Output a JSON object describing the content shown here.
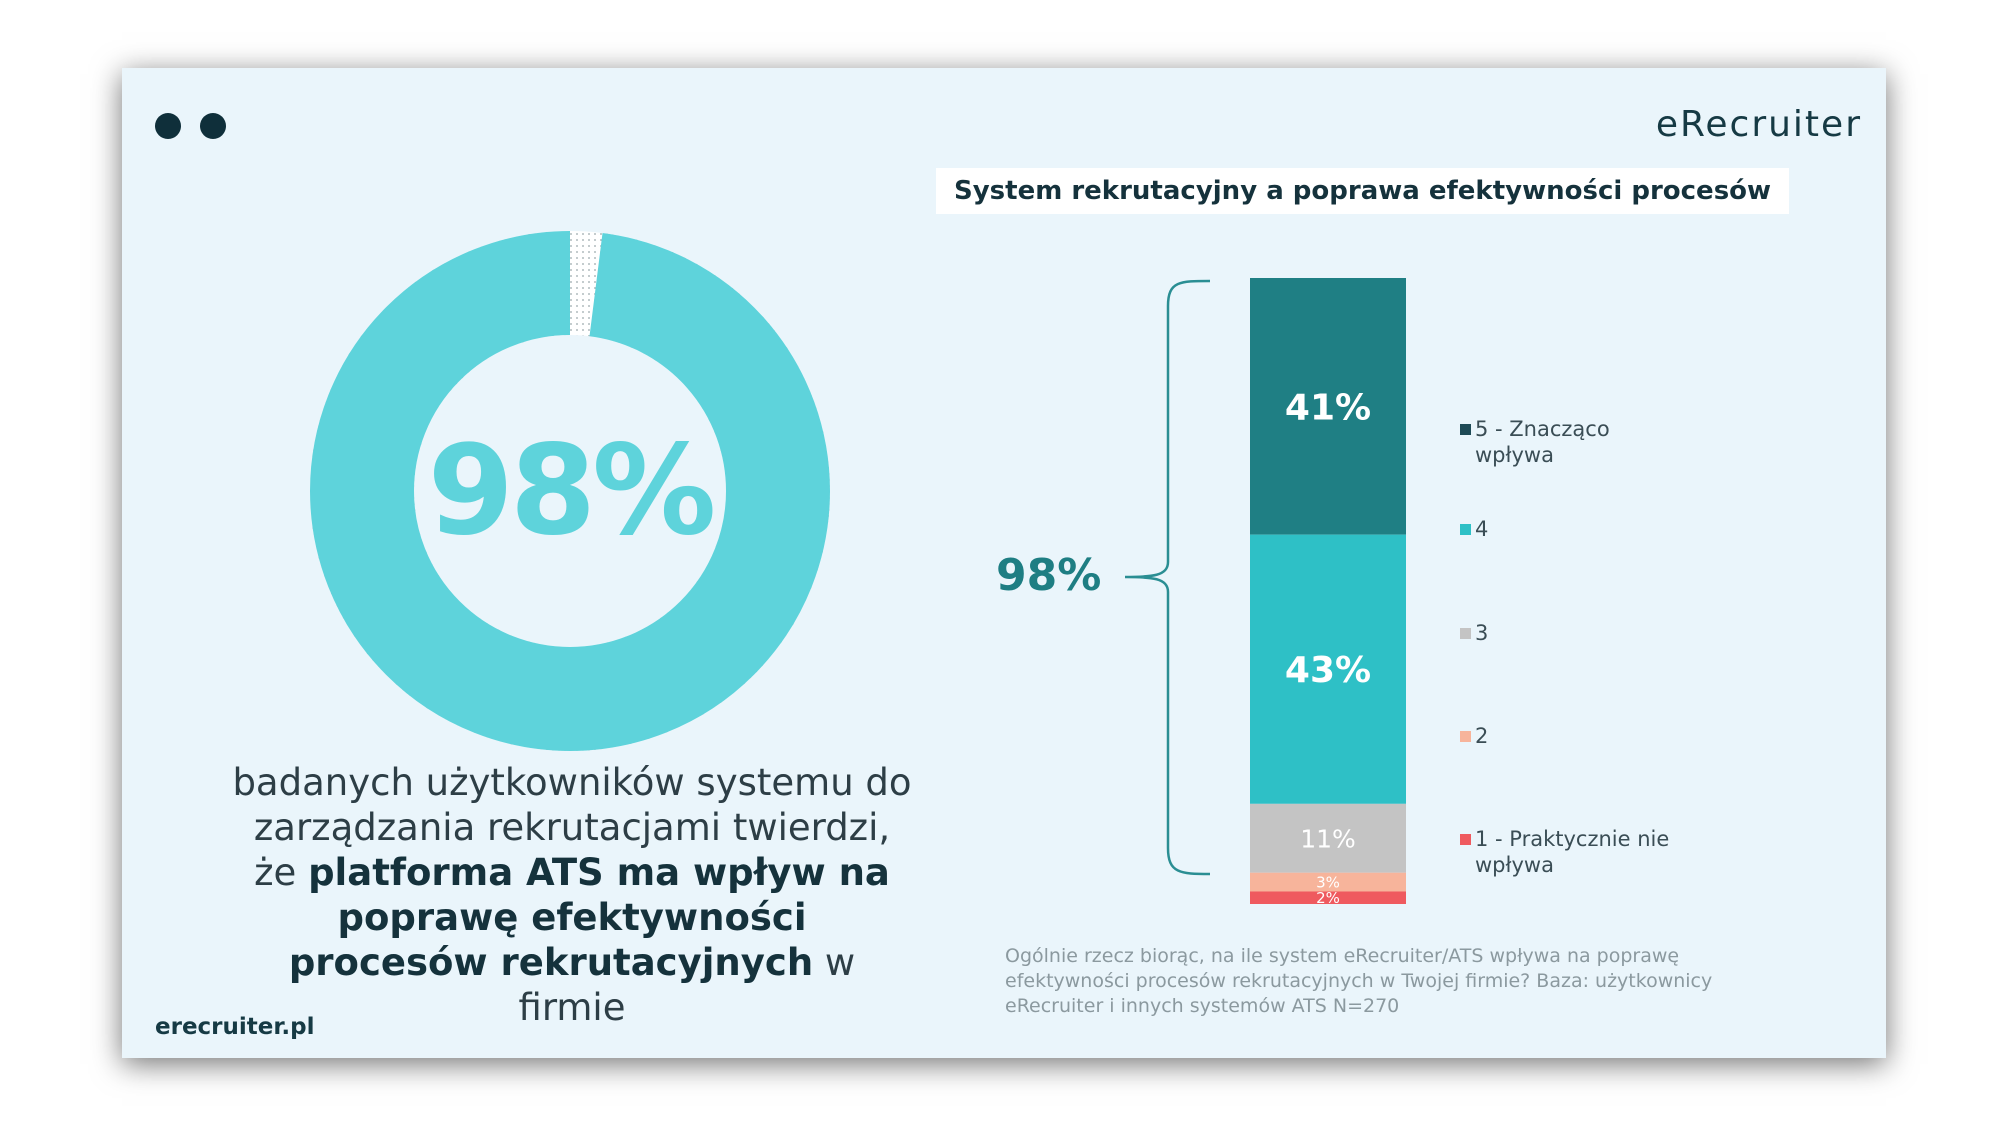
{
  "brand": {
    "logo": "eRecruiter",
    "site": "erecruiter.pl"
  },
  "donut": {
    "value": 98,
    "label": "98%",
    "color": "#5ed3db"
  },
  "description": {
    "part1": "badanych użytkowników systemu do zarządzania rekrutacjami twierdzi, że",
    "bold": "platforma ATS ma wpływ na poprawę efektywności procesów rekrutacyjnych",
    "part2": "w firmie"
  },
  "chart_data": {
    "type": "bar",
    "title": "System rekrutacyjny a poprawa efektywności procesów",
    "categories": [
      "5 - Znacząco wpływa",
      "4",
      "3",
      "2",
      "1 - Praktycznie nie wpływa"
    ],
    "values": [
      41,
      43,
      11,
      3,
      2
    ],
    "labels": [
      "41%",
      "43%",
      "11%",
      "3%",
      "2%"
    ],
    "colors": [
      "#1f7f84",
      "#2ec0c6",
      "#c4c4c4",
      "#f7b49b",
      "#ef5a5f"
    ],
    "brace_label": "98%",
    "legend_position": "right",
    "footnote": "Ogólnie rzecz biorąc, na ile system eRecruiter/ATS wpływa na poprawę efektywności procesów rekrutacyjnych w Twojej firmie? Baza: użytkownicy eRecruiter i innych systemów ATS N=270"
  }
}
